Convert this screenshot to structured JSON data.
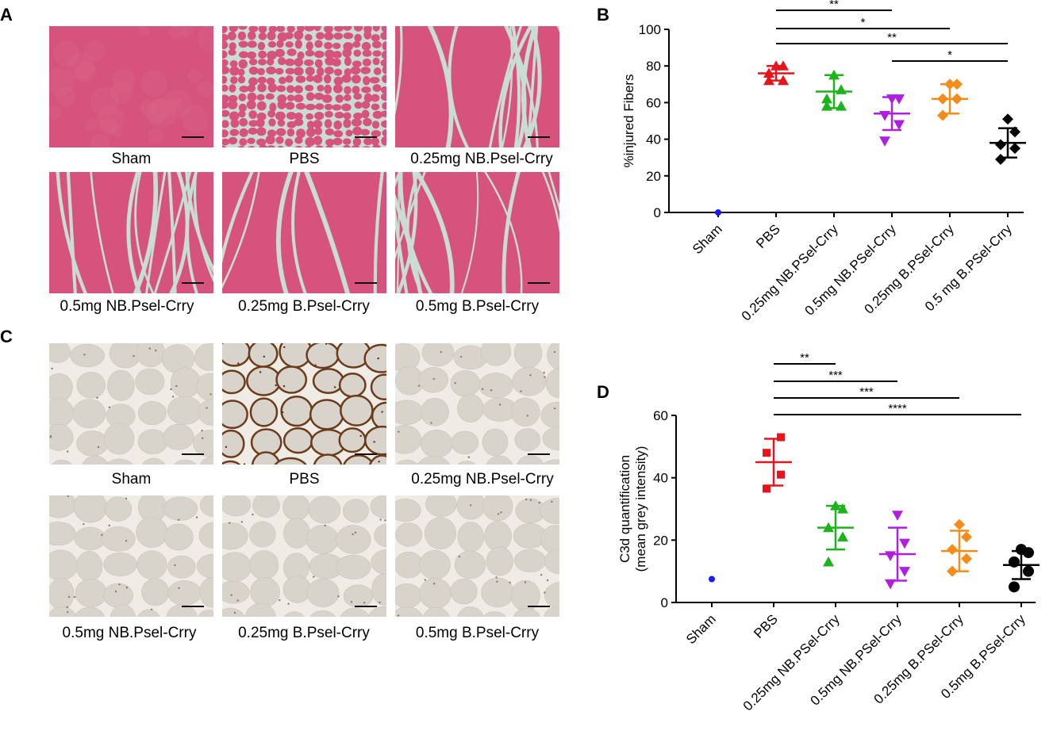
{
  "panels": {
    "a": {
      "letter": "A",
      "captions": [
        "Sham",
        "PBS",
        "0.25mg NB.Psel-Crry",
        "0.5mg NB.Psel-Crry",
        "0.25mg B.Psel-Crry",
        "0.5mg B.Psel-Crry"
      ]
    },
    "c": {
      "letter": "C",
      "captions": [
        "Sham",
        "PBS",
        "0.25mg NB.Psel-Crry",
        "0.5mg NB.Psel-Crry",
        "0.25mg B.Psel-Crry",
        "0.5mg B.Psel-Crry"
      ]
    },
    "b": {
      "letter": "B"
    },
    "d": {
      "letter": "D"
    }
  },
  "chart_data": [
    {
      "type": "scatter",
      "ylabel": "%injured Fibers",
      "ylim": [
        0,
        100
      ],
      "yticks": [
        0,
        20,
        40,
        60,
        80,
        100
      ],
      "categories": [
        "Sham",
        "PBS",
        "0.25mg NB.PSel-Crry",
        "0.5mg NB.PSel-Crry",
        "0.25mg B.PSel-Crry",
        "0.5 mg B.PSel-Crry"
      ],
      "series": [
        {
          "category": "Sham",
          "color": "#1a1aff",
          "marker": "circle",
          "points": [
            0
          ],
          "mean": null,
          "sd": null
        },
        {
          "category": "PBS",
          "color": "#e8141b",
          "marker": "triangle-up",
          "points": [
            72,
            72,
            76,
            80,
            80
          ],
          "mean": 76,
          "sd": 4
        },
        {
          "category": "0.25mg NB.PSel-Crry",
          "color": "#1db31d",
          "marker": "triangle-up",
          "points": [
            58,
            58,
            62,
            67,
            75
          ],
          "mean": 66,
          "sd": 9
        },
        {
          "category": "0.5mg NB.PSel-Crry",
          "color": "#b01ee0",
          "marker": "triangle-down",
          "points": [
            39,
            48,
            53,
            62,
            62
          ],
          "mean": 54,
          "sd": 9
        },
        {
          "category": "0.25mg B.PSel-Crry",
          "color": "#f48c1c",
          "marker": "diamond",
          "points": [
            53,
            62,
            62,
            70,
            70
          ],
          "mean": 62,
          "sd": 8
        },
        {
          "category": "0.5 mg B.PSel-Crry",
          "color": "#000000",
          "marker": "diamond",
          "points": [
            29,
            35,
            37,
            44,
            51
          ],
          "mean": 38,
          "sd": 8
        }
      ],
      "significance": [
        {
          "from": "PBS",
          "to": "0.5mg NB.PSel-Crry",
          "label": "**"
        },
        {
          "from": "PBS",
          "to": "0.25mg B.PSel-Crry",
          "label": "*"
        },
        {
          "from": "PBS",
          "to": "0.5 mg B.PSel-Crry",
          "label": "**"
        },
        {
          "from": "0.5mg NB.PSel-Crry",
          "to": "0.5 mg B.PSel-Crry",
          "label": "*"
        }
      ]
    },
    {
      "type": "scatter",
      "ylabel": "C3d quantification\n(mean grey intensity)",
      "ylim": [
        0,
        60
      ],
      "yticks": [
        0,
        20,
        40,
        60
      ],
      "categories": [
        "Sham",
        "PBS",
        "0.25mg NB.PSel-Crry",
        "0.5mg NB.PSel-Crry",
        "0.25mg B.PSel-Crry",
        "0.5mg B.PSel-Crry"
      ],
      "series": [
        {
          "category": "Sham",
          "color": "#1a1aff",
          "marker": "circle",
          "points": [
            7.5
          ],
          "mean": null,
          "sd": null
        },
        {
          "category": "PBS",
          "color": "#e8141b",
          "marker": "square",
          "points": [
            36.5,
            41,
            48,
            53
          ],
          "mean": 45,
          "sd": 7.5
        },
        {
          "category": "0.25mg NB.PSel-Crry",
          "color": "#1db31d",
          "marker": "triangle-up",
          "points": [
            13,
            21,
            24,
            30,
            31
          ],
          "mean": 24,
          "sd": 7
        },
        {
          "category": "0.5mg NB.PSel-Crry",
          "color": "#b01ee0",
          "marker": "triangle-down",
          "points": [
            6,
            10,
            15,
            19,
            28
          ],
          "mean": 15.5,
          "sd": 8.5
        },
        {
          "category": "0.25mg B.PSel-Crry",
          "color": "#f48c1c",
          "marker": "diamond",
          "points": [
            10,
            14,
            17,
            21,
            25
          ],
          "mean": 16.5,
          "sd": 6.5
        },
        {
          "category": "0.5mg B.PSel-Crry",
          "color": "#000000",
          "marker": "circle-big",
          "points": [
            5,
            10,
            13,
            16,
            17
          ],
          "mean": 12,
          "sd": 4.5
        }
      ],
      "significance": [
        {
          "from": "PBS",
          "to": "0.25mg NB.PSel-Crry",
          "label": "**"
        },
        {
          "from": "PBS",
          "to": "0.5mg NB.PSel-Crry",
          "label": "***"
        },
        {
          "from": "PBS",
          "to": "0.25mg B.PSel-Crry",
          "label": "***"
        },
        {
          "from": "PBS",
          "to": "0.5mg B.PSel-Crry",
          "label": "****"
        }
      ]
    }
  ],
  "colors": {
    "he_background": "#d6537e",
    "he_gap": "#c9ddd2",
    "ihc_background": "#d8d4cc",
    "ihc_gap": "#efece6",
    "ihc_stain": "#6b3b1b"
  }
}
